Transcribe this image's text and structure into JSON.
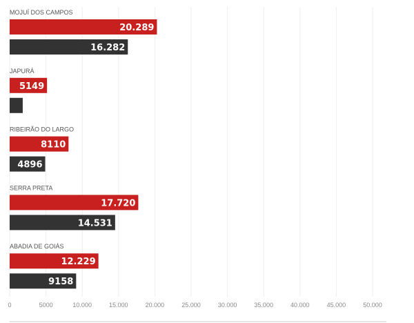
{
  "chart_data": {
    "type": "bar",
    "orientation": "horizontal",
    "categories": [
      "MOJUÍ DOS CAMPOS",
      "JAPURÁ",
      "RIBEIRÃO DO LARGO",
      "SERRA PRETA",
      "ABADIA DE GOIÁS"
    ],
    "series": [
      {
        "color": "#c8201e",
        "values": [
          20289,
          5149,
          8110,
          17720,
          12229
        ],
        "labels": [
          "20.289",
          "5149",
          "8110",
          "17.720",
          "12.229"
        ]
      },
      {
        "color": "#333333",
        "values": [
          16282,
          1800,
          4896,
          14531,
          9158
        ],
        "labels": [
          "16.282",
          "",
          "4896",
          "14.531",
          "9158"
        ]
      }
    ],
    "xlim": [
      0,
      50000
    ],
    "xticks": [
      0,
      5000,
      10000,
      15000,
      20000,
      25000,
      30000,
      35000,
      40000,
      45000,
      50000
    ],
    "xtick_labels": [
      "0",
      "5000",
      "10.000",
      "15.000",
      "20.000",
      "25.000",
      "30.000",
      "35.000",
      "40.000",
      "45.000",
      "50.000"
    ],
    "grid": true,
    "legend": "none"
  }
}
